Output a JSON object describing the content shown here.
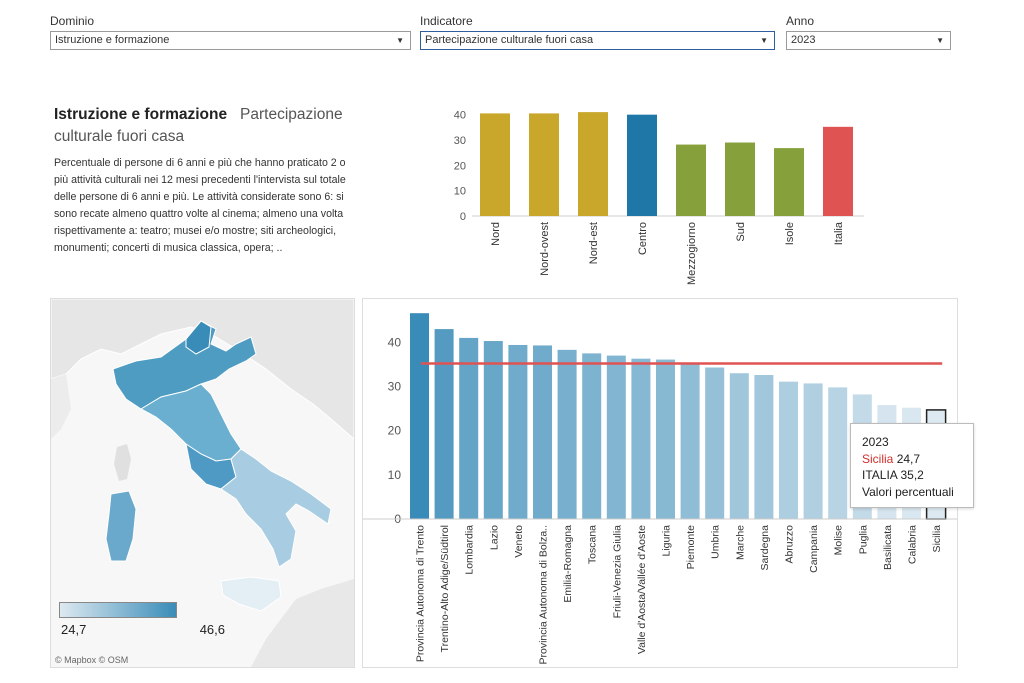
{
  "filters": {
    "dominio": {
      "label": "Dominio",
      "value": "Istruzione e formazione"
    },
    "indicatore": {
      "label": "Indicatore",
      "value": "Partecipazione culturale fuori casa"
    },
    "anno": {
      "label": "Anno",
      "value": "2023"
    }
  },
  "description": {
    "title_main": "Istruzione e formazione",
    "title_sub": "Partecipazione culturale fuori casa",
    "body": "Percentuale di persone di 6 anni e più che hanno praticato 2 o più attività culturali nei 12 mesi precedenti l'intervista sul totale delle persone di 6 anni e più. Le attività considerate sono 6: si sono recate almeno quattro volte al cinema; almeno una volta rispettivamente a: teatro; musei e/o mostre; siti archeologici, monumenti; concerti di musica classica, opera; .."
  },
  "map": {
    "legend_min": "24,7",
    "legend_max": "46,6",
    "credit": "© Mapbox © OSM",
    "color_low": "#dde9f1",
    "color_high": "#3a8cb8"
  },
  "tooltip": {
    "year": "2023",
    "region": "Sicilia",
    "region_value": "24,7",
    "italy_label": "ITALIA",
    "italy_value": "35,2",
    "units": "Valori percentuali"
  },
  "chart_data": [
    {
      "type": "bar",
      "categories": [
        "Nord",
        "Nord-ovest",
        "Nord-est",
        "Centro",
        "Mezzogiorno",
        "Sud",
        "Isole",
        "Italia"
      ],
      "values": [
        40.5,
        40.5,
        41.0,
        40.0,
        28.2,
        29.0,
        26.8,
        35.2
      ],
      "colors": [
        "#c8a72a",
        "#c8a72a",
        "#c8a72a",
        "#1f77a8",
        "#86a03c",
        "#86a03c",
        "#86a03c",
        "#e05353"
      ],
      "yticks": [
        0,
        10,
        20,
        30,
        40
      ],
      "ylim": [
        0,
        45
      ]
    },
    {
      "type": "bar",
      "categories": [
        "Provincia Autonoma di Trento",
        "Trentino-Alto Adige/Südtirol",
        "Lombardia",
        "Lazio",
        "Veneto",
        "Provincia Autonoma di Bolza..",
        "Emilia-Romagna",
        "Toscana",
        "Friuli-Venezia Giulia",
        "Valle d'Aosta/Vallée d'Aoste",
        "Liguria",
        "Piemonte",
        "Umbria",
        "Marche",
        "Sardegna",
        "Abruzzo",
        "Campania",
        "Molise",
        "Puglia",
        "Basilicata",
        "Calabria",
        "Sicilia"
      ],
      "values": [
        46.6,
        43.0,
        41.0,
        40.3,
        39.4,
        39.3,
        38.3,
        37.5,
        37.0,
        36.3,
        36.1,
        35.1,
        34.3,
        33.0,
        32.6,
        31.1,
        30.7,
        29.8,
        28.2,
        25.8,
        25.2,
        24.7
      ],
      "reference_line": 35.2,
      "reference_color": "#e05353",
      "highlight": "Sicilia",
      "yticks": [
        0,
        10,
        20,
        30,
        40
      ],
      "ylim": [
        0,
        48
      ]
    }
  ]
}
